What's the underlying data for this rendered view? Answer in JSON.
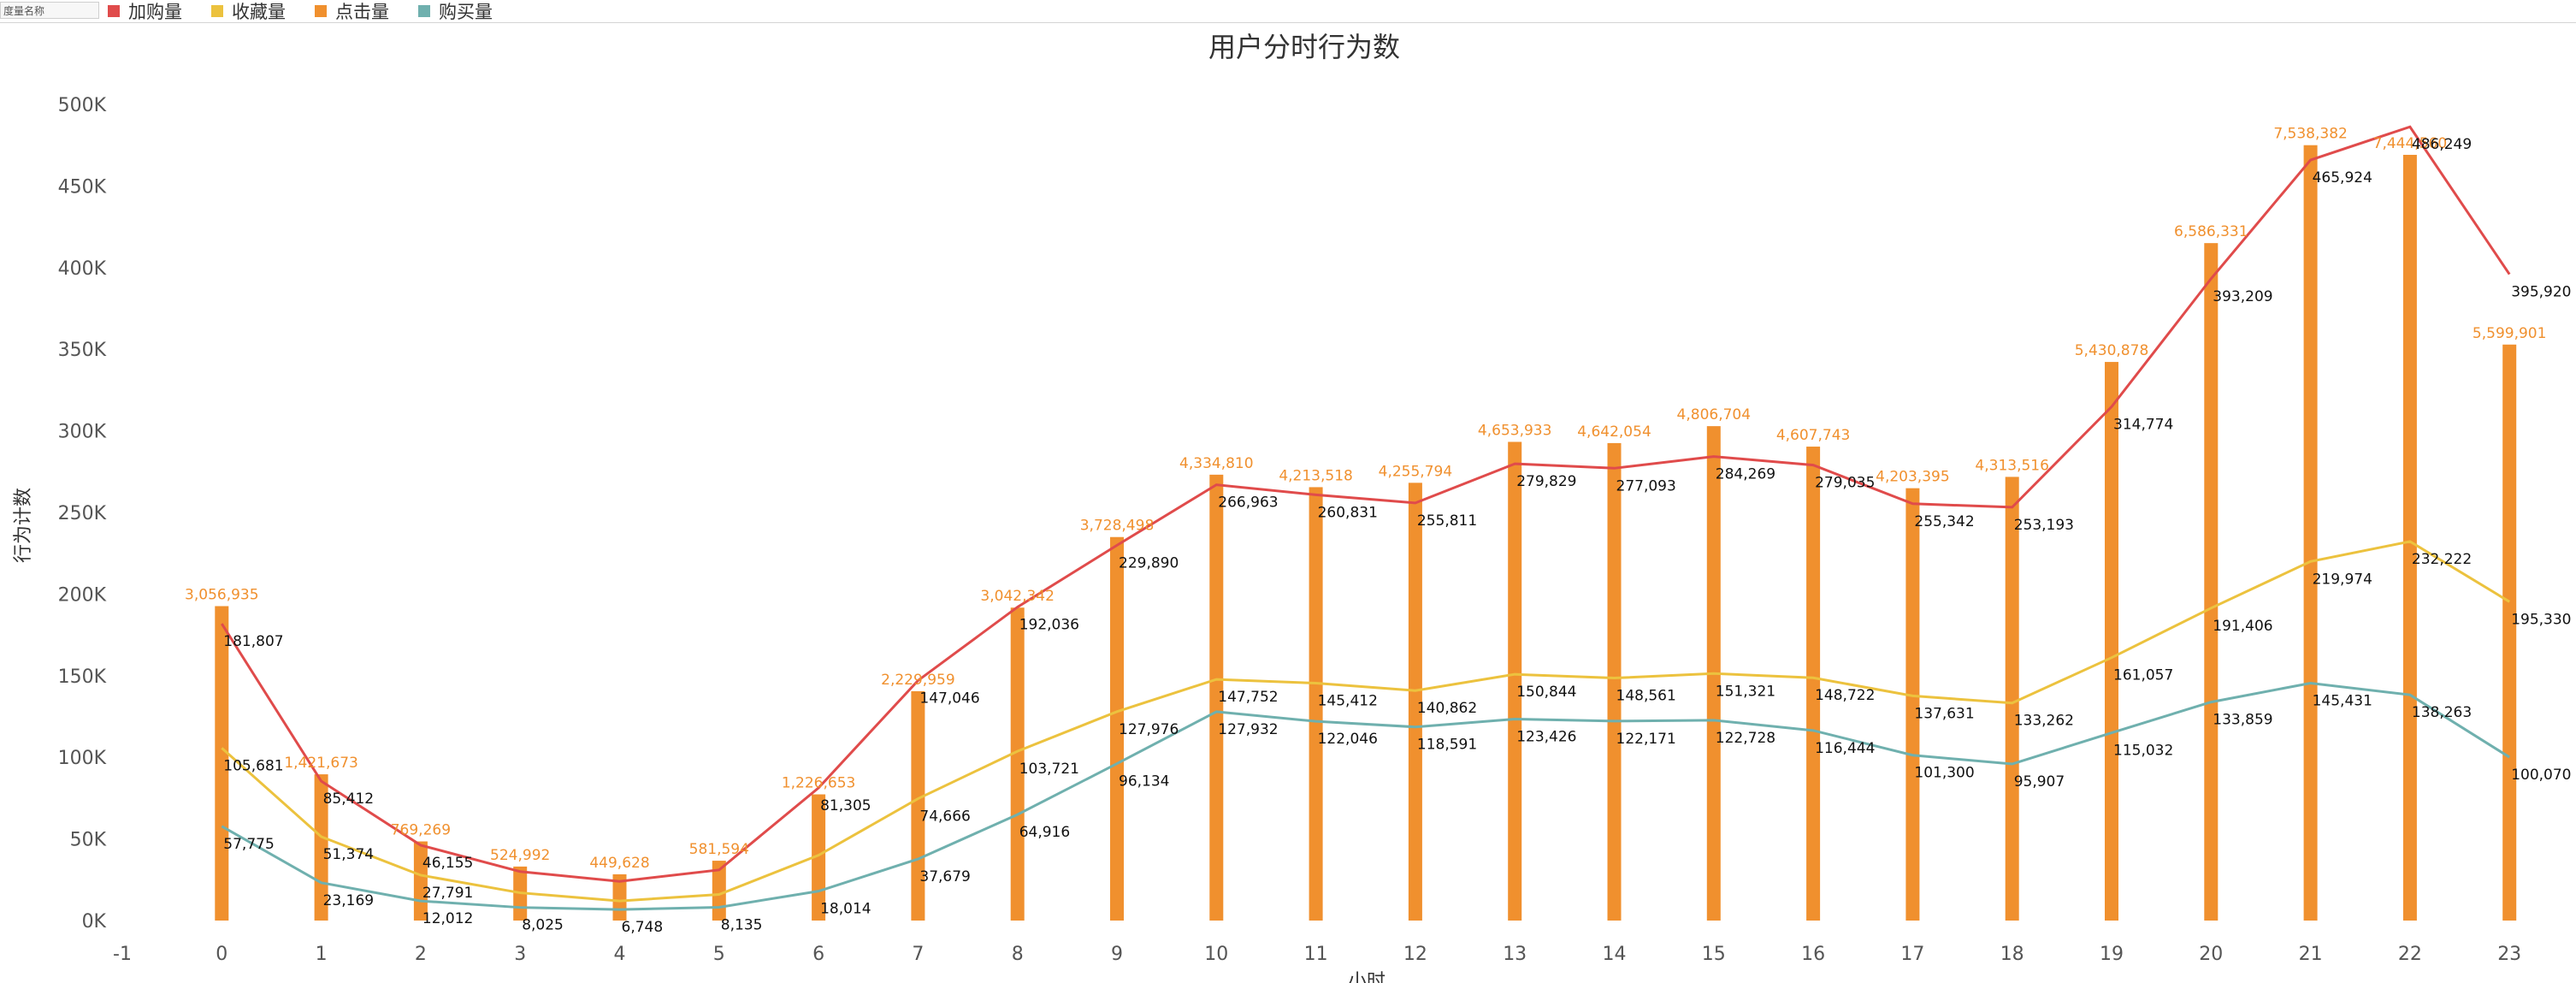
{
  "header": {
    "measure_names_label": "度量名称"
  },
  "legend": [
    {
      "name": "加购量",
      "color": "#e04b4b"
    },
    {
      "name": "收藏量",
      "color": "#ecc23e"
    },
    {
      "name": "点击量",
      "color": "#f0902e"
    },
    {
      "name": "购买量",
      "color": "#6fb0ae"
    }
  ],
  "chart_data": {
    "type": "bar",
    "title": "用户分时行为数",
    "xlabel": "小时",
    "ylabel": "行为计数",
    "x_ticks": [
      "-1",
      "0",
      "1",
      "2",
      "3",
      "4",
      "5",
      "6",
      "7",
      "8",
      "9",
      "10",
      "11",
      "12",
      "13",
      "14",
      "15",
      "16",
      "17",
      "18",
      "19",
      "20",
      "21",
      "22",
      "23"
    ],
    "y_ticks": [
      "0K",
      "50K",
      "100K",
      "150K",
      "200K",
      "250K",
      "300K",
      "350K",
      "400K",
      "450K",
      "500K"
    ],
    "ylim": [
      0,
      500000
    ],
    "xlim": [
      -1,
      23
    ],
    "categories": [
      0,
      1,
      2,
      3,
      4,
      5,
      6,
      7,
      8,
      9,
      10,
      11,
      12,
      13,
      14,
      15,
      16,
      17,
      18,
      19,
      20,
      21,
      22,
      23
    ],
    "bar_series": {
      "name": "点击量",
      "color": "#f0902e",
      "values": [
        3056935,
        1421673,
        769269,
        524992,
        449628,
        581594,
        1226653,
        2229959,
        3042342,
        3728498,
        4334810,
        4213518,
        4255794,
        4653933,
        4642054,
        4806704,
        4607743,
        4203395,
        4313516,
        5430878,
        6586331,
        7538382,
        7444560,
        5599901
      ],
      "labels": [
        "3,056,935",
        "1,421,673",
        "769,269",
        "524,992",
        "449,628",
        "581,594",
        "1,226,653",
        "2,229,959",
        "3,042,342",
        "3,728,498",
        "4,334,810",
        "4,213,518",
        "4,255,794",
        "4,653,933",
        "4,642,054",
        "4,806,704",
        "4,607,743",
        "4,203,395",
        "4,313,516",
        "5,430,878",
        "6,586,331",
        "7,538,382",
        "7,444,560",
        "5,599,901"
      ]
    },
    "line_series": [
      {
        "name": "加购量",
        "color": "#e04b4b",
        "values": [
          181807,
          85412,
          46155,
          30000,
          24000,
          31000,
          81305,
          147046,
          192036,
          229890,
          266963,
          260831,
          255811,
          279829,
          277093,
          284269,
          279035,
          255342,
          253193,
          314774,
          393209,
          465924,
          486249,
          395920
        ],
        "labels": [
          "181,807",
          "85,412",
          "46,155",
          "",
          "",
          "",
          "81,305",
          "147,046",
          "192,036",
          "229,890",
          "266,963",
          "260,831",
          "255,811",
          "279,829",
          "277,093",
          "284,269",
          "279,035",
          "255,342",
          "253,193",
          "314,774",
          "393,209",
          "465,924",
          "486,249",
          "395,920"
        ]
      },
      {
        "name": "收藏量",
        "color": "#ecc23e",
        "values": [
          105681,
          51374,
          27791,
          17000,
          12000,
          16000,
          40000,
          74666,
          103721,
          127976,
          147752,
          145412,
          140862,
          150844,
          148561,
          151321,
          148722,
          137631,
          133262,
          161057,
          191406,
          219974,
          232222,
          195330
        ],
        "labels": [
          "105,681",
          "51,374",
          "27,791",
          "",
          "",
          "",
          "",
          "74,666",
          "103,721",
          "127,976",
          "147,752",
          "145,412",
          "140,862",
          "150,844",
          "148,561",
          "151,321",
          "148,722",
          "137,631",
          "133,262",
          "161,057",
          "191,406",
          "219,974",
          "232,222",
          "195,330"
        ]
      },
      {
        "name": "购买量",
        "color": "#6fb0ae",
        "values": [
          57775,
          23169,
          12012,
          8025,
          6748,
          8135,
          18014,
          37679,
          64916,
          96134,
          127932,
          122046,
          118591,
          123426,
          122171,
          122728,
          116444,
          101300,
          95907,
          115032,
          133859,
          145431,
          138263,
          100070
        ],
        "labels": [
          "57,775",
          "23,169",
          "12,012",
          "8,025",
          "6,748",
          "8,135",
          "18,014",
          "37,679",
          "64,916",
          "96,134",
          "127,932",
          "122,046",
          "118,591",
          "123,426",
          "122,171",
          "122,728",
          "116,444",
          "101,300",
          "95,907",
          "115,032",
          "133,859",
          "145,431",
          "138,263",
          "100,070"
        ]
      }
    ]
  }
}
